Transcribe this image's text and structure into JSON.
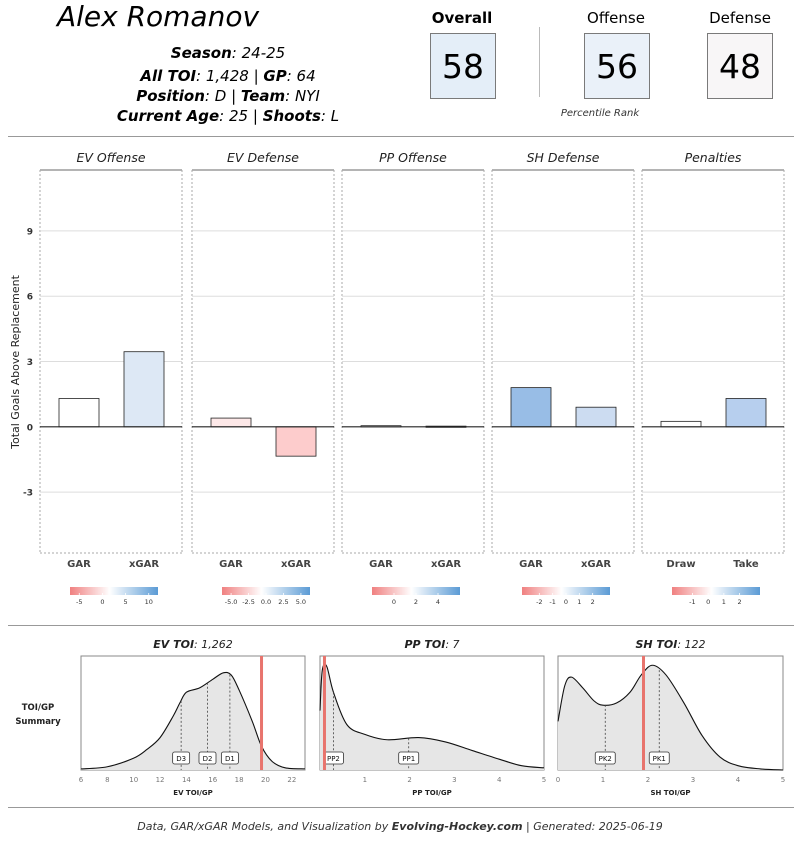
{
  "player": {
    "name": "Alex Romanov",
    "season_label": "Season",
    "season": "24-25",
    "toi_label": "All TOI",
    "toi": "1,428",
    "gp_label": "GP",
    "gp": "64",
    "position_label": "Position",
    "position": "D",
    "team_label": "Team",
    "team": "NYI",
    "age_label": "Current Age",
    "age": "25",
    "shoots_label": "Shoots",
    "shoots": "L"
  },
  "scores": {
    "overall_label": "Overall",
    "overall": "58",
    "offense_label": "Offense",
    "offense": "56",
    "defense_label": "Defense",
    "defense": "48",
    "percentile_caption": "Percentile Rank",
    "colors": {
      "overall": "#e4eef8",
      "offense": "#eaf1f9",
      "defense": "#f8f6f7"
    }
  },
  "chart_data": [
    {
      "type": "bar",
      "ylabel": "Total Goals Above Replacement",
      "ylim": [
        -5.8,
        11.8
      ],
      "yticks": [
        -3,
        0,
        3,
        6,
        9
      ],
      "panels": [
        {
          "title": "EV Offense",
          "categories": [
            "GAR",
            "xGAR"
          ],
          "values": [
            1.3,
            3.45
          ],
          "colors": [
            "#ffffff",
            "#dde8f5"
          ],
          "legend": {
            "ticks": [
              "-5",
              "0",
              "5",
              "10"
            ],
            "range": [
              -7,
              12
            ]
          }
        },
        {
          "title": "EV Defense",
          "categories": [
            "GAR",
            "xGAR"
          ],
          "values": [
            0.4,
            -1.35
          ],
          "colors": [
            "#fde8e8",
            "#fdcccc"
          ],
          "legend": {
            "ticks": [
              "-5.0",
              "-2.5",
              "0.0",
              "2.5",
              "5.0"
            ],
            "range": [
              -6.3,
              6.3
            ]
          }
        },
        {
          "title": "PP Offense",
          "categories": [
            "GAR",
            "xGAR"
          ],
          "values": [
            0.05,
            0.03
          ],
          "colors": [
            "#ffffff",
            "#ffffff"
          ],
          "legend": {
            "ticks": [
              "0",
              "2",
              "4"
            ],
            "range": [
              -2,
              6
            ]
          }
        },
        {
          "title": "SH Defense",
          "categories": [
            "GAR",
            "xGAR"
          ],
          "values": [
            1.8,
            0.9
          ],
          "colors": [
            "#98bde6",
            "#ccdcf1"
          ],
          "legend": {
            "ticks": [
              "-2",
              "-1",
              "0",
              "1",
              "2"
            ],
            "range": [
              -3.3,
              3.3
            ]
          }
        },
        {
          "title": "Penalties",
          "categories": [
            "Draw",
            "Take"
          ],
          "values": [
            0.25,
            1.3
          ],
          "colors": [
            "#ffffff",
            "#b7cfee"
          ],
          "legend": {
            "ticks": [
              "-1",
              "0",
              "1",
              "2"
            ],
            "range": [
              -2.3,
              3.3
            ]
          }
        }
      ]
    },
    {
      "type": "area",
      "side_label": [
        "TOI/GP",
        "Summary"
      ],
      "panels": [
        {
          "title_label": "EV TOI",
          "title_value": "1,262",
          "xlabel": "EV TOI/GP",
          "xlim": [
            6,
            23
          ],
          "xticks": [
            6,
            8,
            10,
            12,
            14,
            16,
            18,
            20,
            22
          ],
          "density": [
            [
              6,
              0.01
            ],
            [
              8,
              0.03
            ],
            [
              10,
              0.11
            ],
            [
              11,
              0.19
            ],
            [
              12,
              0.3
            ],
            [
              13,
              0.5
            ],
            [
              13.5,
              0.62
            ],
            [
              14,
              0.72
            ],
            [
              15,
              0.76
            ],
            [
              16,
              0.84
            ],
            [
              16.8,
              0.9
            ],
            [
              17.4,
              0.88
            ],
            [
              18,
              0.74
            ],
            [
              19,
              0.45
            ],
            [
              19.7,
              0.22
            ],
            [
              20.5,
              0.08
            ],
            [
              21.5,
              0.02
            ],
            [
              23,
              0.01
            ]
          ],
          "markers": [
            {
              "label": "D3",
              "x": 13.6
            },
            {
              "label": "D2",
              "x": 15.6
            },
            {
              "label": "D1",
              "x": 17.3
            }
          ],
          "player_x": 19.7
        },
        {
          "title_label": "PP TOI",
          "title_value": "7",
          "xlabel": "PP TOI/GP",
          "xlim": [
            0,
            5
          ],
          "xticks": [
            1,
            2,
            3,
            4,
            5
          ],
          "density": [
            [
              0,
              0.55
            ],
            [
              0.05,
              0.92
            ],
            [
              0.15,
              0.96
            ],
            [
              0.3,
              0.72
            ],
            [
              0.6,
              0.42
            ],
            [
              1,
              0.33
            ],
            [
              1.5,
              0.28
            ],
            [
              2.2,
              0.3
            ],
            [
              2.8,
              0.26
            ],
            [
              3.4,
              0.18
            ],
            [
              4,
              0.1
            ],
            [
              4.5,
              0.04
            ],
            [
              5,
              0.02
            ]
          ],
          "markers": [
            {
              "label": "PP2",
              "x": 0.3
            },
            {
              "label": "PP1",
              "x": 1.98
            }
          ],
          "player_x": 0.1
        },
        {
          "title_label": "SH TOI",
          "title_value": "122",
          "xlabel": "SH TOI/GP",
          "xlim": [
            0,
            5
          ],
          "xticks": [
            0,
            1,
            2,
            3,
            4,
            5
          ],
          "density": [
            [
              0,
              0.45
            ],
            [
              0.15,
              0.78
            ],
            [
              0.3,
              0.86
            ],
            [
              0.55,
              0.76
            ],
            [
              0.8,
              0.64
            ],
            [
              1,
              0.6
            ],
            [
              1.3,
              0.62
            ],
            [
              1.6,
              0.72
            ],
            [
              1.85,
              0.88
            ],
            [
              2.1,
              0.97
            ],
            [
              2.4,
              0.88
            ],
            [
              2.8,
              0.62
            ],
            [
              3.2,
              0.32
            ],
            [
              3.6,
              0.12
            ],
            [
              4,
              0.04
            ],
            [
              4.5,
              0.01
            ],
            [
              5,
              0
            ]
          ],
          "markers": [
            {
              "label": "PK2",
              "x": 1.05
            },
            {
              "label": "PK1",
              "x": 2.25
            }
          ],
          "player_x": 1.9
        }
      ]
    }
  ],
  "footer": {
    "prefix": "Data, GAR/xGAR Models, and Visualization by",
    "brand": "Evolving-Hockey.com",
    "suffix": "| Generated: 2025-06-19"
  },
  "colors": {
    "player_line": "#e8746d",
    "density_fill": "#e6e6e6",
    "neg_bar": "#f08080",
    "pos_bar": "#5b9bd5"
  }
}
